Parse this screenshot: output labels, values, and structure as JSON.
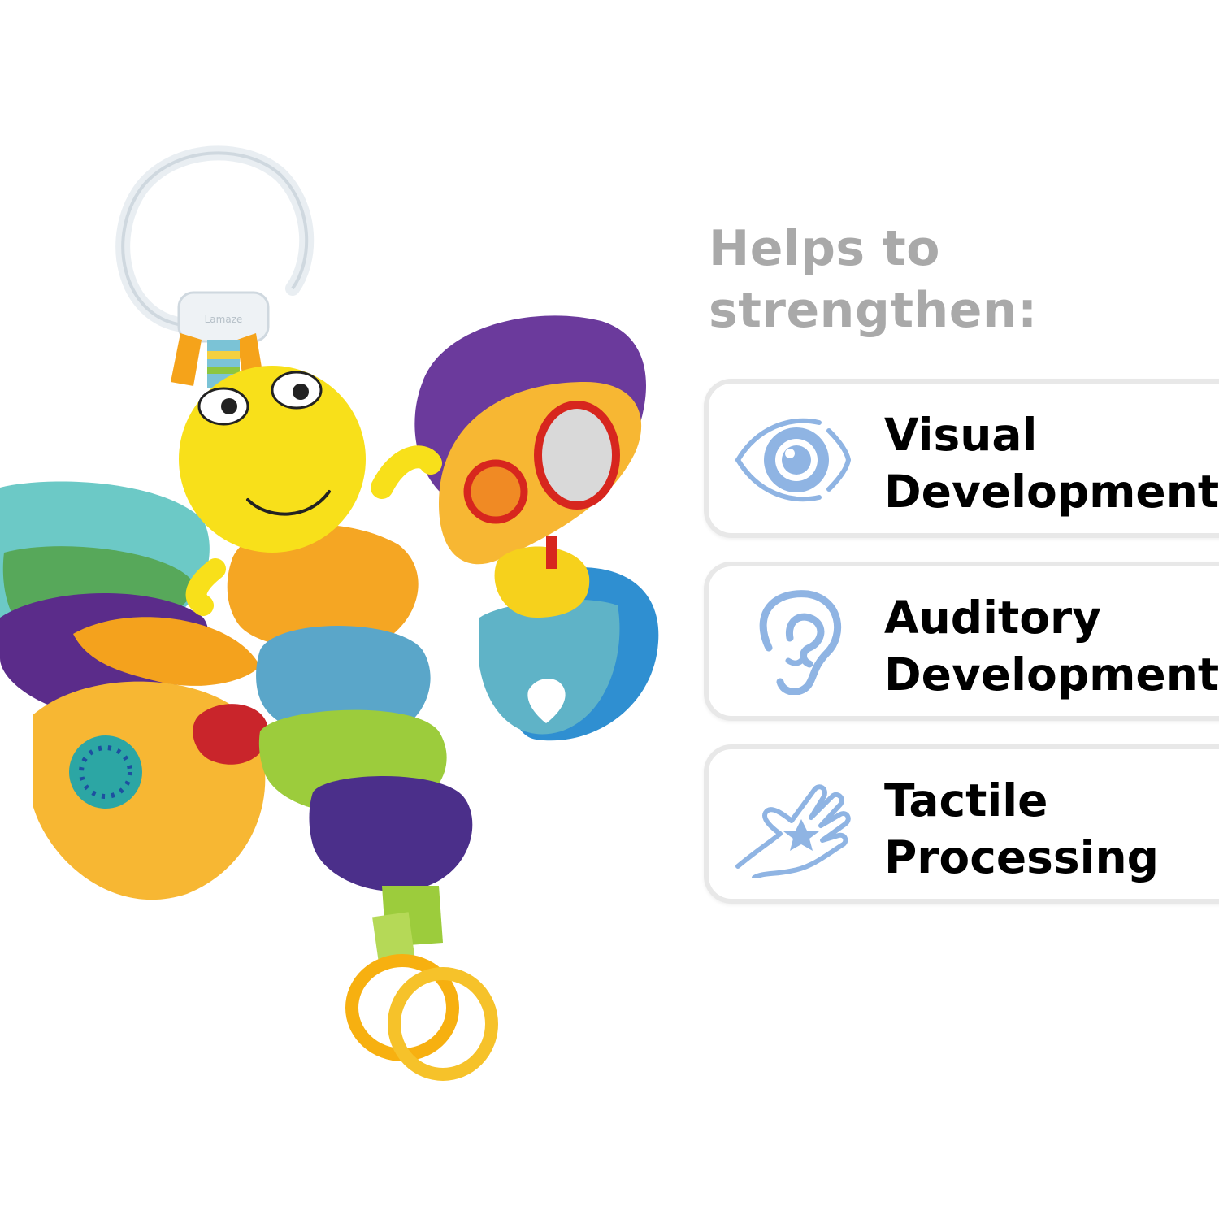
{
  "heading": {
    "line1": "Helps to",
    "line2": "strengthen:"
  },
  "features": [
    {
      "icon": "eye-icon",
      "line1": "Visual",
      "line2": "Development"
    },
    {
      "icon": "ear-icon",
      "line1": "Auditory",
      "line2": "Development"
    },
    {
      "icon": "hand-icon",
      "line1": "Tactile",
      "line2": "Processing"
    }
  ],
  "product": {
    "brand_mark": "Lamaze"
  },
  "colors": {
    "heading_gray": "#a9a9a9",
    "icon_blue": "#8fb4e3",
    "card_border": "#e8e8e8"
  }
}
